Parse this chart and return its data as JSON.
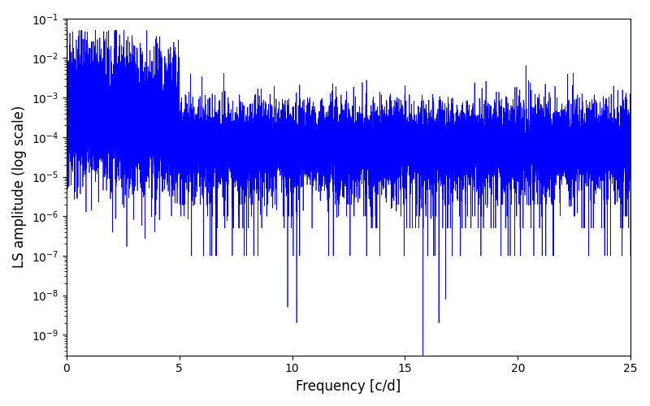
{
  "title": "",
  "xlabel": "Frequency [c/d]",
  "ylabel": "LS amplitude (log scale)",
  "xlim": [
    0,
    25
  ],
  "ylim": [
    3e-10,
    0.1
  ],
  "line_color": "#0000ff",
  "line_width": 0.5,
  "figsize": [
    8.0,
    5.0
  ],
  "dpi": 100,
  "yscale": "log",
  "background_color": "#ffffff",
  "seed": 12345,
  "n_points": 15000
}
